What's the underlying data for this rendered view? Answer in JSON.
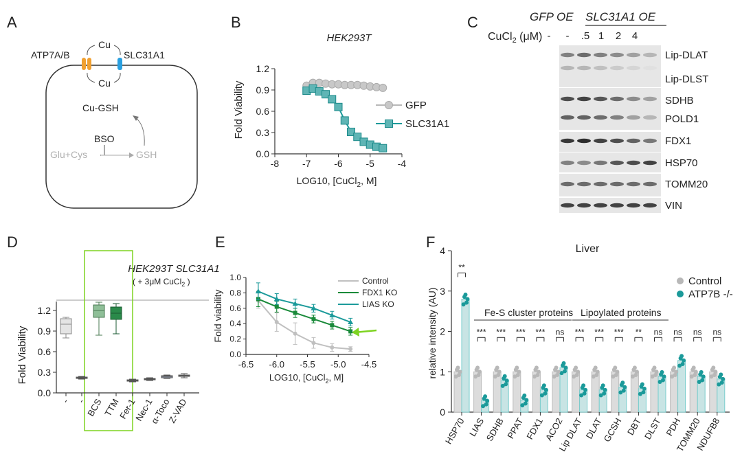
{
  "panel_letters": [
    "A",
    "B",
    "C",
    "D",
    "E",
    "F"
  ],
  "panelA": {
    "transporter_left": "ATP7A/B",
    "transporter_right": "SLC31A1",
    "cu_top": "Cu",
    "cu_bottom": "Cu",
    "cu_gsh": "Cu-GSH",
    "bso": "BSO",
    "glu_cys": "Glu+Cys",
    "gsh": "GSH"
  },
  "panelC": {
    "header_gfp": "GFP OE",
    "header_slc": "SLC31A1 OE",
    "cucl2_label": "CuCl",
    "cucl2_sub": "2",
    "cucl2_unit": "(μM)",
    "lanes": [
      "-",
      "-",
      "-",
      ".5",
      "1",
      "2",
      "4"
    ],
    "bands": [
      "Lip-DLAT",
      "Lip-DLST",
      "SDHB",
      "POLD1",
      "FDX1",
      "HSP70",
      "TOMM20",
      "VIN"
    ]
  },
  "panelD": {
    "title": "HEK293T SLC31A1",
    "subtitle": "( + 3μM CuCl",
    "subtitle_sub": "2",
    "subtitle_end": " )"
  },
  "colors": {
    "teal": "#1b9a9a",
    "gray": "#b8b8b8",
    "dark_green": "#1a7a3a",
    "green_box": "#3a9a5a",
    "light_green_box": "#7fb88a",
    "lime_arrow": "#7ed321",
    "orange": "#f0a030",
    "blue": "#2aa0e0"
  },
  "chart_data": [
    {
      "panel": "B",
      "type": "line",
      "title": "HEK293T",
      "xlabel": "LOG10, [CuCl2, M]",
      "ylabel": "Fold Viability",
      "xlim": [
        -8,
        -4
      ],
      "ylim": [
        0,
        1.2
      ],
      "xticks": [
        "-8",
        "-7",
        "-6",
        "-5",
        "-4"
      ],
      "yticks": [
        "0.0",
        "0.3",
        "0.6",
        "0.9",
        "1.2"
      ],
      "legend": "right",
      "series": [
        {
          "name": "GFP",
          "x": [
            -7.0,
            -6.8,
            -6.6,
            -6.4,
            -6.2,
            -6.0,
            -5.8,
            -5.6,
            -5.4,
            -5.2,
            -5.0,
            -4.8,
            -4.6
          ],
          "y": [
            0.96,
            1.0,
            1.0,
            0.99,
            0.98,
            0.98,
            0.97,
            0.97,
            0.97,
            0.96,
            0.95,
            0.94,
            0.93
          ]
        },
        {
          "name": "SLC31A1",
          "x": [
            -7.0,
            -6.8,
            -6.6,
            -6.4,
            -6.2,
            -6.0,
            -5.8,
            -5.6,
            -5.4,
            -5.2,
            -5.0,
            -4.8,
            -4.6
          ],
          "y": [
            0.89,
            0.92,
            0.88,
            0.84,
            0.77,
            0.66,
            0.47,
            0.31,
            0.24,
            0.17,
            0.13,
            0.1,
            0.08
          ]
        }
      ]
    },
    {
      "panel": "D",
      "type": "box",
      "ylabel": "Fold Viability",
      "ylim": [
        0,
        1.35
      ],
      "yticks": [
        "0.0",
        "0.3",
        "0.6",
        "0.9",
        "1.2"
      ],
      "categories": [
        "-",
        "-",
        "BCS",
        "TTM",
        "Fer-1",
        "Nec-1",
        "α-Toco",
        "Z-VAD"
      ],
      "boxes": [
        {
          "min": 0.8,
          "q1": 0.86,
          "median": 1.0,
          "q3": 1.08,
          "max": 1.1
        },
        {
          "min": 0.2,
          "q1": 0.21,
          "median": 0.22,
          "q3": 0.23,
          "max": 0.24
        },
        {
          "min": 0.84,
          "q1": 1.1,
          "median": 1.2,
          "q3": 1.28,
          "max": 1.32
        },
        {
          "min": 0.86,
          "q1": 1.07,
          "median": 1.16,
          "q3": 1.25,
          "max": 1.3
        },
        {
          "min": 0.16,
          "q1": 0.17,
          "median": 0.18,
          "q3": 0.19,
          "max": 0.2
        },
        {
          "min": 0.18,
          "q1": 0.19,
          "median": 0.2,
          "q3": 0.21,
          "max": 0.22
        },
        {
          "min": 0.21,
          "q1": 0.22,
          "median": 0.24,
          "q3": 0.25,
          "max": 0.26
        },
        {
          "min": 0.22,
          "q1": 0.24,
          "median": 0.25,
          "q3": 0.26,
          "max": 0.28
        }
      ]
    },
    {
      "panel": "E",
      "type": "line",
      "xlabel": "LOG10, [CuCl2, M]",
      "ylabel": "Fold viability",
      "xlim": [
        -6.5,
        -4.5
      ],
      "ylim": [
        0,
        1.0
      ],
      "xticks": [
        "-6.5",
        "-6.0",
        "-5.5",
        "-5.0",
        "-4.5"
      ],
      "yticks": [
        "0.0",
        "0.2",
        "0.4",
        "0.6",
        "0.8",
        "1.0"
      ],
      "legend": "top-right",
      "series": [
        {
          "name": "Control",
          "x": [
            -6.3,
            -6.0,
            -5.7,
            -5.4,
            -5.1,
            -4.8
          ],
          "y": [
            0.7,
            0.42,
            0.27,
            0.15,
            0.09,
            0.07
          ],
          "err": [
            0.1,
            0.12,
            0.14,
            0.07,
            0.05,
            0.03
          ]
        },
        {
          "name": "FDX1 KO",
          "x": [
            -6.3,
            -6.0,
            -5.7,
            -5.4,
            -5.1,
            -4.8
          ],
          "y": [
            0.72,
            0.62,
            0.54,
            0.46,
            0.38,
            0.3
          ],
          "err": [
            0.1,
            0.07,
            0.06,
            0.05,
            0.05,
            0.05
          ]
        },
        {
          "name": "LIAS KO",
          "x": [
            -6.3,
            -6.0,
            -5.7,
            -5.4,
            -5.1,
            -4.8
          ],
          "y": [
            0.82,
            0.72,
            0.66,
            0.6,
            0.51,
            0.42
          ],
          "err": [
            0.11,
            0.07,
            0.06,
            0.05,
            0.05,
            0.05
          ]
        }
      ]
    },
    {
      "panel": "F",
      "type": "bar",
      "title": "Liver",
      "ylabel": "relative intensity (AU)",
      "ylim": [
        0,
        4
      ],
      "yticks": [
        "0",
        "1",
        "2",
        "3",
        "4"
      ],
      "legend": "right",
      "group_labels": [
        "Fe-S cluster proteins",
        "Lipoylated proteins"
      ],
      "categories": [
        "HSP70",
        "LIAS",
        "SDHB",
        "PPAT",
        "FDX1",
        "ACO2",
        "Lip DLAT",
        "DLAT",
        "GCSH",
        "DBT",
        "DLST",
        "PDH",
        "TOMM20",
        "NDUFB8"
      ],
      "significance": [
        "**",
        "***",
        "***",
        "***",
        "***",
        "ns",
        "***",
        "***",
        "***",
        "**",
        "ns",
        "ns",
        "ns",
        "ns"
      ],
      "series": [
        {
          "name": "Control",
          "values": [
            1.0,
            1.0,
            1.0,
            1.0,
            1.0,
            1.0,
            1.0,
            1.0,
            1.0,
            1.0,
            1.0,
            1.0,
            1.0,
            1.0
          ]
        },
        {
          "name": "ATP7B -/-",
          "values": [
            2.8,
            0.28,
            0.78,
            0.3,
            0.55,
            1.1,
            0.55,
            0.55,
            0.62,
            0.58,
            0.88,
            1.28,
            0.88,
            0.82
          ]
        }
      ]
    }
  ]
}
